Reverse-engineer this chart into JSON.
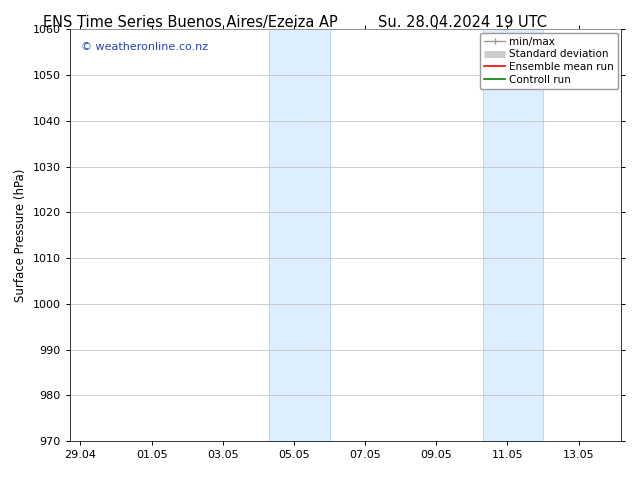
{
  "title_left": "ENS Time Series Buenos Aires/Ezeiza AP",
  "title_right": "Su. 28.04.2024 19 UTC",
  "ylabel": "Surface Pressure (hPa)",
  "ylim": [
    970,
    1060
  ],
  "yticks": [
    970,
    980,
    990,
    1000,
    1010,
    1020,
    1030,
    1040,
    1050,
    1060
  ],
  "xtick_labels": [
    "29.04",
    "01.05",
    "03.05",
    "05.05",
    "07.05",
    "09.05",
    "11.05",
    "13.05"
  ],
  "xtick_positions": [
    0,
    2,
    4,
    6,
    8,
    10,
    12,
    14
  ],
  "xmin": -0.3,
  "xmax": 15.2,
  "shaded_bands": [
    {
      "xmin": 5.3,
      "xmax": 7.0
    },
    {
      "xmin": 11.3,
      "xmax": 13.0
    }
  ],
  "shaded_color": "#ddeeff",
  "shaded_edge_color": "#b8d4ee",
  "background_color": "#ffffff",
  "grid_color": "#bbbbbb",
  "watermark_text": "© weatheronline.co.nz",
  "watermark_color": "#2244bb",
  "legend_items": [
    {
      "label": "min/max",
      "color": "#999999",
      "lw": 1.0
    },
    {
      "label": "Standard deviation",
      "color": "#cccccc",
      "lw": 5
    },
    {
      "label": "Ensemble mean run",
      "color": "#ff0000",
      "lw": 1.2
    },
    {
      "label": "Controll run",
      "color": "#008000",
      "lw": 1.2
    }
  ],
  "title_fontsize": 10.5,
  "tick_fontsize": 8,
  "ylabel_fontsize": 8.5,
  "watermark_fontsize": 8,
  "legend_fontsize": 7.5
}
